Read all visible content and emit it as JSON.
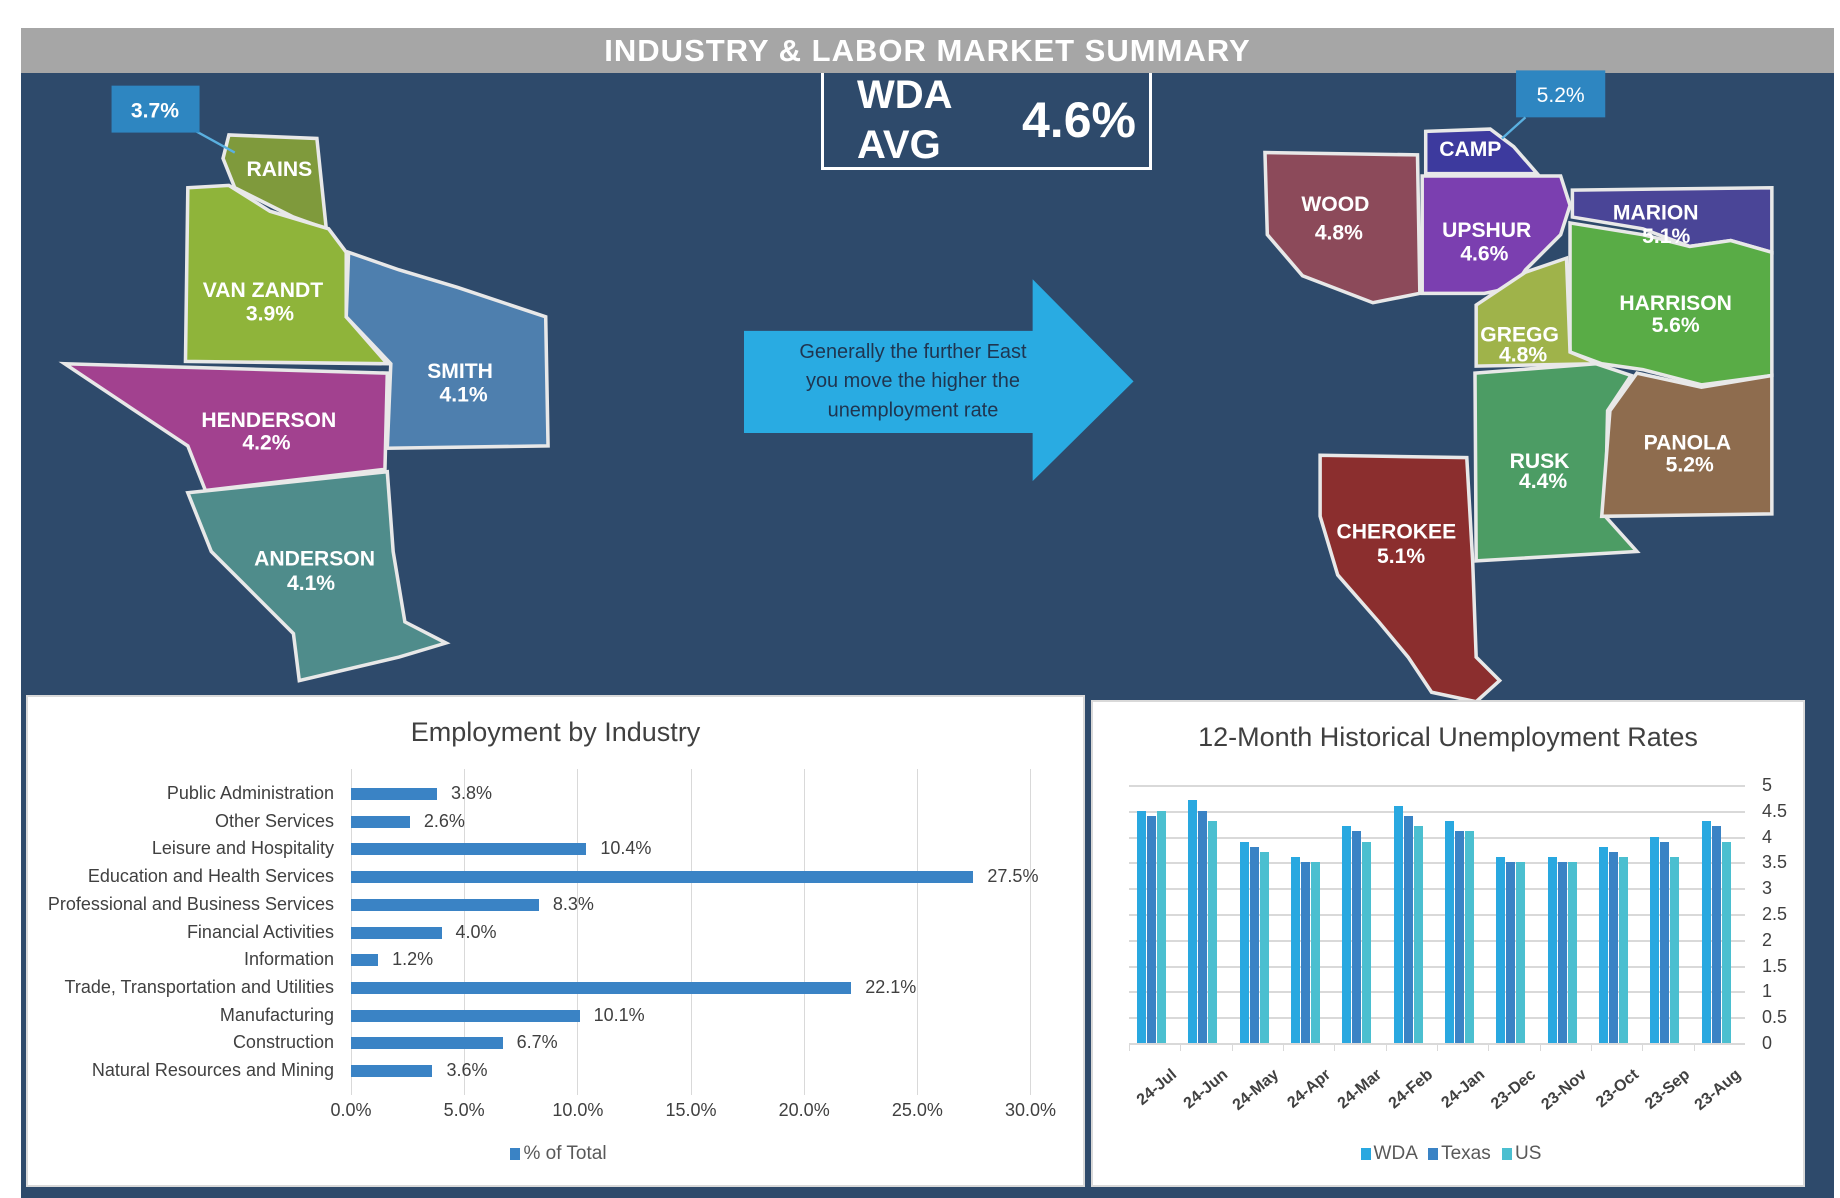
{
  "header": {
    "title": "INDUSTRY & LABOR MARKET SUMMARY"
  },
  "wda_avg": {
    "label_line1": "WDA",
    "label_line2": "AVG",
    "value": "4.6%"
  },
  "arrow_text": {
    "line1": "Generally the further East",
    "line2": "you move the higher the",
    "line3": "unemployment rate"
  },
  "left_map": {
    "rains": {
      "name": "RAINS",
      "rate": "3.7%"
    },
    "van_zandt": {
      "name": "VAN ZANDT",
      "rate": "3.9%"
    },
    "smith": {
      "name": "SMITH",
      "rate": "4.1%"
    },
    "henderson": {
      "name": "HENDERSON",
      "rate": "4.2%"
    },
    "anderson": {
      "name": "ANDERSON",
      "rate": "4.1%"
    }
  },
  "right_map": {
    "camp": {
      "name": "CAMP",
      "rate": "5.2%"
    },
    "wood": {
      "name": "WOOD",
      "rate": "4.8%"
    },
    "upshur": {
      "name": "UPSHUR",
      "rate": "4.6%"
    },
    "marion": {
      "name": "MARION",
      "rate": "5.1%"
    },
    "harrison": {
      "name": "HARRISON",
      "rate": "5.6%"
    },
    "gregg": {
      "name": "GREGG",
      "rate": "4.8%"
    },
    "rusk": {
      "name": "RUSK",
      "rate": "4.4%"
    },
    "panola": {
      "name": "PANOLA",
      "rate": "5.2%"
    },
    "cherokee": {
      "name": "CHEROKEE",
      "rate": "5.1%"
    }
  },
  "colors": {
    "navy": "#2e4a6b",
    "callout": "#2e86c1",
    "arrow": "#29abe2",
    "wda": "#29a8e0",
    "texas": "#3a83c5",
    "us": "#4bbfd0",
    "industry_bar": "#3a83c5"
  },
  "chart_data": [
    {
      "type": "bar",
      "orientation": "horizontal",
      "title": "Employment by Industry",
      "categories": [
        "Public Administration",
        "Other Services",
        "Leisure and Hospitality",
        "Education and Health Services",
        "Professional and Business Services",
        "Financial Activities",
        "Information",
        "Trade, Transportation and Utilities",
        "Manufacturing",
        "Construction",
        "Natural Resources and Mining"
      ],
      "series": [
        {
          "name": "% of Total",
          "values": [
            3.8,
            2.6,
            10.4,
            27.5,
            8.3,
            4.0,
            1.2,
            22.1,
            10.1,
            6.7,
            3.6
          ]
        }
      ],
      "data_labels": [
        "3.8%",
        "2.6%",
        "10.4%",
        "27.5%",
        "8.3%",
        "4.0%",
        "1.2%",
        "22.1%",
        "10.1%",
        "6.7%",
        "3.6%"
      ],
      "xlim": [
        0,
        30
      ],
      "x_ticks": [
        "0.0%",
        "5.0%",
        "10.0%",
        "15.0%",
        "20.0%",
        "25.0%",
        "30.0%"
      ],
      "grid": true,
      "legend": "bottom"
    },
    {
      "type": "bar",
      "title": "12-Month Historical Unemployment Rates",
      "categories": [
        "24-Jul",
        "24-Jun",
        "24-May",
        "24-Apr",
        "24-Mar",
        "24-Feb",
        "24-Jan",
        "23-Dec",
        "23-Nov",
        "23-Oct",
        "23-Sep",
        "23-Aug"
      ],
      "series": [
        {
          "name": "WDA",
          "values": [
            4.5,
            4.7,
            3.9,
            3.6,
            4.2,
            4.6,
            4.3,
            3.6,
            3.6,
            3.8,
            4.0,
            4.3
          ]
        },
        {
          "name": "Texas",
          "values": [
            4.4,
            4.5,
            3.8,
            3.5,
            4.1,
            4.4,
            4.1,
            3.5,
            3.5,
            3.7,
            3.9,
            4.2
          ]
        },
        {
          "name": "US",
          "values": [
            4.5,
            4.3,
            3.7,
            3.5,
            3.9,
            4.2,
            4.1,
            3.5,
            3.5,
            3.6,
            3.6,
            3.9
          ]
        }
      ],
      "ylim": [
        0,
        5
      ],
      "y_ticks": [
        "0",
        "0.5",
        "1",
        "1.5",
        "2",
        "2.5",
        "3",
        "3.5",
        "4",
        "4.5",
        "5"
      ],
      "y_axis": "right",
      "grid": true,
      "legend": "bottom"
    }
  ]
}
